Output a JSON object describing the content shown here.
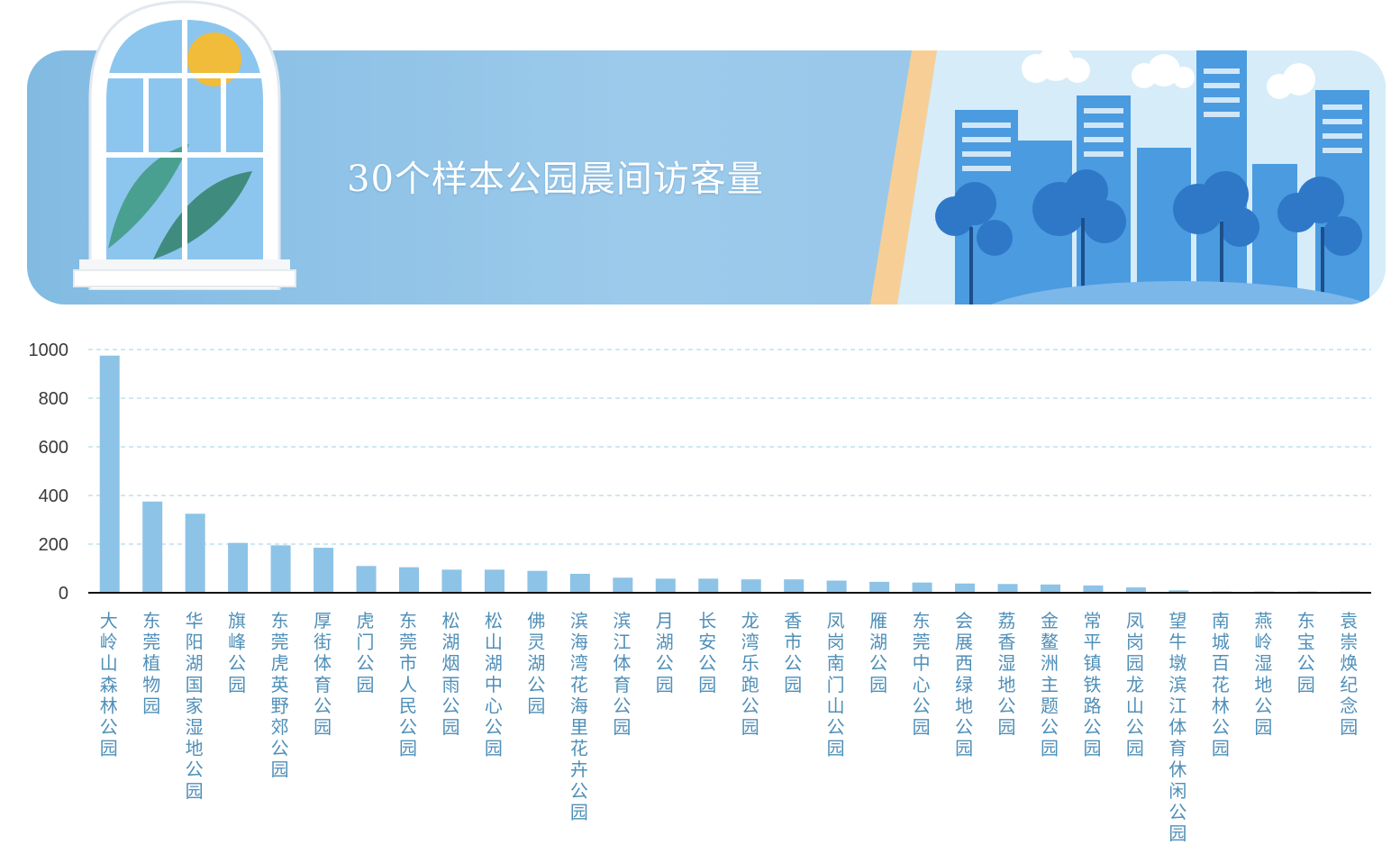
{
  "header": {
    "title": "30个样本公园晨间访客量"
  },
  "colors": {
    "bar": "#8dc3e6",
    "banner": "#94c4e8",
    "axis": "#111111",
    "grid": "#bfe1ef",
    "label": "#4f8fb8"
  },
  "chart_data": {
    "type": "bar",
    "title": "30个样本公园晨间访客量",
    "xlabel": "",
    "ylabel": "",
    "ylim": [
      0,
      1000
    ],
    "yticks": [
      0,
      200,
      400,
      600,
      800,
      1000
    ],
    "grid": true,
    "categories": [
      "大岭山森林公园",
      "东莞植物园",
      "华阳湖国家湿地公园",
      "旗峰公园",
      "东莞虎英野郊公园",
      "厚街体育公园",
      "虎门公园",
      "东莞市人民公园",
      "松湖烟雨公园",
      "松山湖中心公园",
      "佛灵湖公园",
      "滨海湾花海里花卉公园",
      "滨江体育公园",
      "月湖公园",
      "长安公园",
      "龙湾乐跑公园",
      "香市公园",
      "凤岗南门山公园",
      "雁湖公园",
      "东莞中心公园",
      "会展西绿地公园",
      "荔香湿地公园",
      "金鳌洲主题公园",
      "常平镇铁路公园",
      "凤岗园龙山公园",
      "望牛墩滨江体育休闲公园",
      "南城百花林公园",
      "燕岭湿地公园",
      "东宝公园",
      "袁崇焕纪念园"
    ],
    "values": [
      975,
      375,
      325,
      205,
      195,
      185,
      110,
      105,
      95,
      95,
      90,
      78,
      62,
      58,
      58,
      55,
      55,
      50,
      45,
      42,
      38,
      36,
      34,
      30,
      22,
      10,
      5,
      5,
      5,
      5
    ]
  }
}
